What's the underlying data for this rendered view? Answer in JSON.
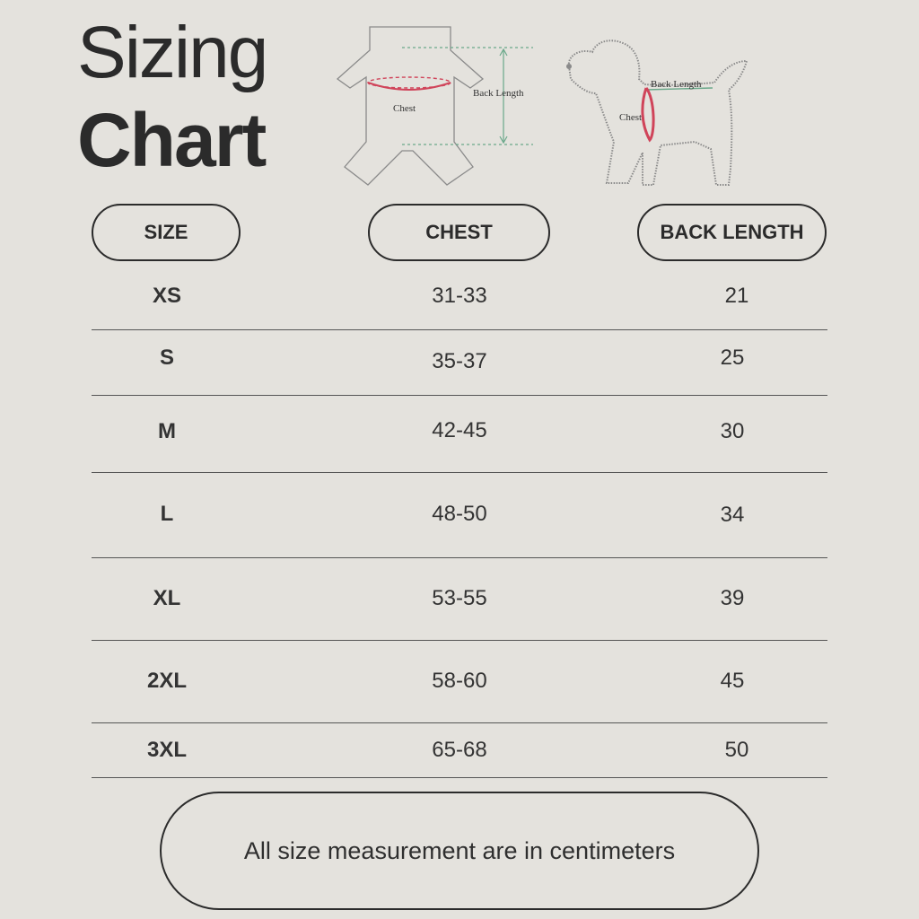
{
  "title": {
    "line1": "Sizing",
    "line2": "Chart"
  },
  "illustrations": {
    "shirt": {
      "chest_label": "Chest",
      "back_label": "Back Length"
    },
    "dog": {
      "chest_label": "Chest",
      "back_label": "Back Length"
    }
  },
  "table": {
    "headers": {
      "size": "SIZE",
      "chest": "CHEST",
      "back": "BACK LENGTH"
    },
    "rows": [
      {
        "size": "XS",
        "chest": "31-33",
        "back": "21"
      },
      {
        "size": "S",
        "chest": "35-37",
        "back": "25"
      },
      {
        "size": "M",
        "chest": "42-45",
        "back": "30"
      },
      {
        "size": "L",
        "chest": "48-50",
        "back": "34"
      },
      {
        "size": "XL",
        "chest": "53-55",
        "back": "39"
      },
      {
        "size": "2XL",
        "chest": "58-60",
        "back": "45"
      },
      {
        "size": "3XL",
        "chest": "65-68",
        "back": "50"
      }
    ]
  },
  "note": "All size measurement are in centimeters",
  "colors": {
    "background": "#e4e2dd",
    "chest_line": "#d0445a",
    "back_line": "#6aa88a"
  }
}
